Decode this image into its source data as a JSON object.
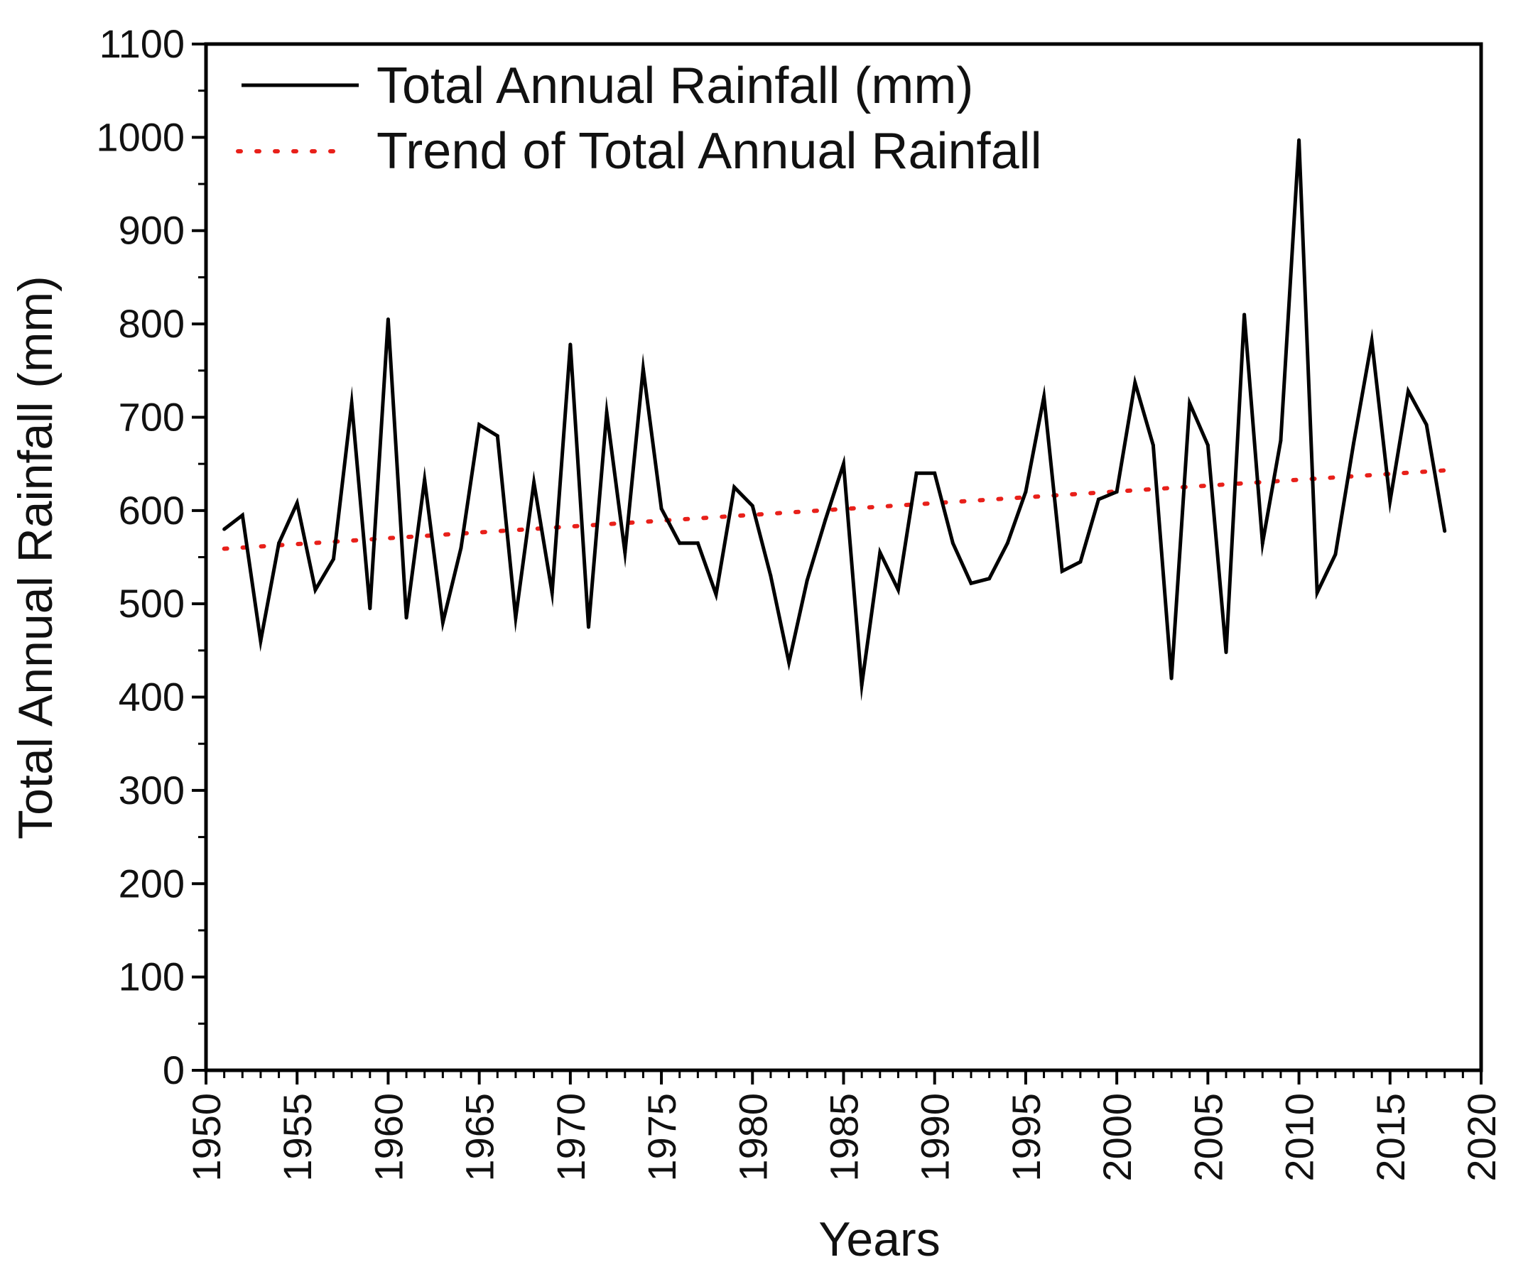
{
  "chart_data": {
    "type": "line",
    "title": "",
    "xlabel": "Years",
    "ylabel": "Total Annual Rainfall (mm)",
    "xlim": [
      1950,
      2020
    ],
    "ylim": [
      0,
      1100
    ],
    "xticks": [
      "1950",
      "1955",
      "1960",
      "1965",
      "1970",
      "1975",
      "1980",
      "1985",
      "1990",
      "1995",
      "2000",
      "2005",
      "2010",
      "2015",
      "2020"
    ],
    "yticks": [
      "0",
      "100",
      "200",
      "300",
      "400",
      "500",
      "600",
      "700",
      "800",
      "900",
      "1000",
      "1100"
    ],
    "grid": false,
    "legend_position": "top-left",
    "series": [
      {
        "name": "Total Annual Rainfall (mm)",
        "style": "solid",
        "color": "#000000",
        "x": [
          1951,
          1952,
          1953,
          1954,
          1955,
          1956,
          1957,
          1958,
          1959,
          1960,
          1961,
          1962,
          1963,
          1964,
          1965,
          1966,
          1967,
          1968,
          1969,
          1970,
          1971,
          1972,
          1973,
          1974,
          1975,
          1976,
          1977,
          1978,
          1979,
          1980,
          1981,
          1982,
          1983,
          1984,
          1985,
          1986,
          1987,
          1988,
          1989,
          1990,
          1991,
          1992,
          1993,
          1994,
          1995,
          1996,
          1997,
          1998,
          1999,
          2000,
          2001,
          2002,
          2003,
          2004,
          2005,
          2006,
          2007,
          2008,
          2009,
          2010,
          2011,
          2012,
          2013,
          2014,
          2015,
          2016,
          2017,
          2018
        ],
        "values": [
          580,
          595,
          460,
          565,
          608,
          515,
          548,
          715,
          495,
          805,
          485,
          633,
          480,
          560,
          692,
          680,
          485,
          630,
          512,
          778,
          475,
          705,
          555,
          752,
          602,
          565,
          565,
          510,
          625,
          605,
          530,
          437,
          525,
          590,
          650,
          413,
          555,
          515,
          640,
          640,
          565,
          522,
          527,
          565,
          620,
          722,
          535,
          545,
          612,
          620,
          737,
          670,
          420,
          715,
          670,
          448,
          810,
          565,
          675,
          997,
          512,
          553,
          672,
          782,
          610,
          728,
          692,
          578
        ]
      },
      {
        "name": "Trend of Total Annual Rainfall",
        "style": "dotted",
        "color": "#e8201a",
        "x": [
          1951,
          2018
        ],
        "values": [
          559,
          643
        ]
      }
    ]
  }
}
